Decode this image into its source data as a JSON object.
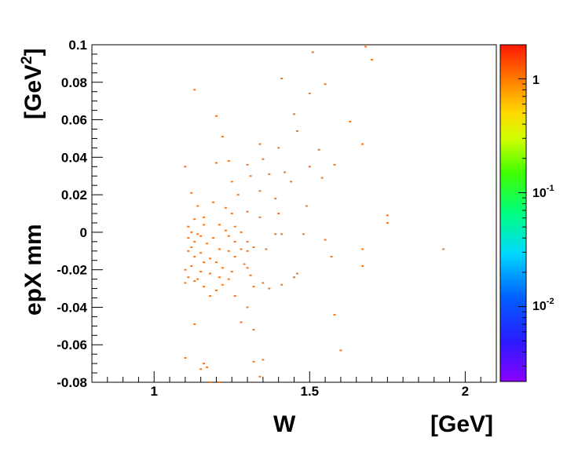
{
  "chart_data": {
    "type": "scatter",
    "xlabel": "W",
    "xunit": "[GeV]",
    "ylabel": "epX mm",
    "yunit_base": "[GeV",
    "yunit_sup": "2",
    "yunit_close": "]",
    "xlim": [
      0.8,
      2.1
    ],
    "ylim": [
      -0.08,
      0.1
    ],
    "x_ticks": [
      1,
      1.5,
      2
    ],
    "x_tick_labels": [
      "1",
      "1.5",
      "2"
    ],
    "y_ticks": [
      -0.08,
      -0.06,
      -0.04,
      -0.02,
      0,
      0.02,
      0.04,
      0.06,
      0.08,
      0.1
    ],
    "y_tick_labels": [
      "-0.08",
      "-0.06",
      "-0.04",
      "-0.02",
      "0",
      "0.02",
      "0.04",
      "0.06",
      "0.08",
      "0.1"
    ],
    "grid": false,
    "marker_color": "#f07820",
    "colorbar": {
      "scale": "log",
      "labels": [
        {
          "base": "1",
          "exp": "",
          "value": 1
        },
        {
          "base": "10",
          "exp": "-1",
          "value": 0.1
        },
        {
          "base": "10",
          "exp": "-2",
          "value": 0.01
        }
      ]
    },
    "points": [
      [
        1.68,
        0.099
      ],
      [
        1.51,
        0.096
      ],
      [
        1.7,
        0.092
      ],
      [
        1.41,
        0.082
      ],
      [
        1.55,
        0.079
      ],
      [
        1.13,
        0.076
      ],
      [
        1.5,
        0.074
      ],
      [
        1.2,
        0.062
      ],
      [
        1.45,
        0.063
      ],
      [
        1.63,
        0.059
      ],
      [
        1.46,
        0.054
      ],
      [
        1.22,
        0.051
      ],
      [
        1.34,
        0.047
      ],
      [
        1.67,
        0.047
      ],
      [
        1.4,
        0.045
      ],
      [
        1.53,
        0.044
      ],
      [
        1.35,
        0.039
      ],
      [
        1.2,
        0.037
      ],
      [
        1.24,
        0.038
      ],
      [
        1.3,
        0.036
      ],
      [
        1.5,
        0.035
      ],
      [
        1.58,
        0.036
      ],
      [
        1.1,
        0.035
      ],
      [
        1.42,
        0.032
      ],
      [
        1.37,
        0.031
      ],
      [
        1.31,
        0.03
      ],
      [
        1.25,
        0.027
      ],
      [
        1.44,
        0.027
      ],
      [
        1.54,
        0.029
      ],
      [
        1.49,
        0.014
      ],
      [
        1.12,
        0.021
      ],
      [
        1.27,
        0.02
      ],
      [
        1.34,
        0.022
      ],
      [
        1.39,
        0.018
      ],
      [
        1.19,
        0.016
      ],
      [
        1.23,
        0.013
      ],
      [
        1.3,
        0.011
      ],
      [
        1.14,
        0.014
      ],
      [
        1.25,
        0.01
      ],
      [
        1.4,
        0.01
      ],
      [
        1.75,
        0.009
      ],
      [
        1.13,
        0.007
      ],
      [
        1.16,
        0.008
      ],
      [
        1.34,
        0.008
      ],
      [
        1.75,
        0.005
      ],
      [
        1.11,
        0.003
      ],
      [
        1.16,
        0.004
      ],
      [
        1.21,
        0.004
      ],
      [
        1.26,
        0.003
      ],
      [
        1.12,
        0.0
      ],
      [
        1.23,
        0.001
      ],
      [
        1.28,
        0.0
      ],
      [
        1.14,
        -0.001
      ],
      [
        1.39,
        -0.001
      ],
      [
        1.48,
        -0.001
      ],
      [
        1.11,
        -0.003
      ],
      [
        1.15,
        -0.002
      ],
      [
        1.19,
        -0.003
      ],
      [
        1.24,
        -0.002
      ],
      [
        1.41,
        -0.001
      ],
      [
        1.13,
        -0.005
      ],
      [
        1.17,
        -0.006
      ],
      [
        1.26,
        -0.005
      ],
      [
        1.3,
        -0.005
      ],
      [
        1.55,
        -0.004
      ],
      [
        1.12,
        -0.008
      ],
      [
        1.21,
        -0.009
      ],
      [
        1.28,
        -0.009
      ],
      [
        1.32,
        -0.008
      ],
      [
        1.36,
        -0.009
      ],
      [
        1.93,
        -0.009
      ],
      [
        1.67,
        -0.009
      ],
      [
        1.11,
        -0.01
      ],
      [
        1.15,
        -0.011
      ],
      [
        1.24,
        -0.01
      ],
      [
        1.3,
        -0.01
      ],
      [
        1.13,
        -0.013
      ],
      [
        1.18,
        -0.014
      ],
      [
        1.26,
        -0.013
      ],
      [
        1.57,
        -0.013
      ],
      [
        1.16,
        -0.016
      ],
      [
        1.2,
        -0.016
      ],
      [
        1.29,
        -0.017
      ],
      [
        1.12,
        -0.018
      ],
      [
        1.22,
        -0.019
      ],
      [
        1.67,
        -0.018
      ],
      [
        1.1,
        -0.02
      ],
      [
        1.15,
        -0.021
      ],
      [
        1.18,
        -0.022
      ],
      [
        1.25,
        -0.021
      ],
      [
        1.3,
        -0.019
      ],
      [
        1.46,
        -0.022
      ],
      [
        1.11,
        -0.024
      ],
      [
        1.14,
        -0.025
      ],
      [
        1.21,
        -0.024
      ],
      [
        1.31,
        -0.023
      ],
      [
        1.45,
        -0.024
      ],
      [
        1.13,
        -0.026
      ],
      [
        1.24,
        -0.025
      ],
      [
        1.35,
        -0.027
      ],
      [
        1.1,
        -0.027
      ],
      [
        1.16,
        -0.029
      ],
      [
        1.22,
        -0.028
      ],
      [
        1.32,
        -0.029
      ],
      [
        1.41,
        -0.028
      ],
      [
        1.2,
        -0.031
      ],
      [
        1.37,
        -0.03
      ],
      [
        1.18,
        -0.034
      ],
      [
        1.26,
        -0.034
      ],
      [
        1.3,
        -0.04
      ],
      [
        1.58,
        -0.044
      ],
      [
        1.28,
        -0.048
      ],
      [
        1.13,
        -0.049
      ],
      [
        1.32,
        -0.052
      ],
      [
        1.6,
        -0.063
      ],
      [
        1.1,
        -0.067
      ],
      [
        1.32,
        -0.069
      ],
      [
        1.35,
        -0.068
      ],
      [
        1.16,
        -0.07
      ],
      [
        1.17,
        -0.072
      ],
      [
        1.15,
        -0.073
      ],
      [
        1.34,
        -0.077
      ],
      [
        1.18,
        -0.08
      ],
      [
        1.21,
        -0.08
      ]
    ]
  }
}
